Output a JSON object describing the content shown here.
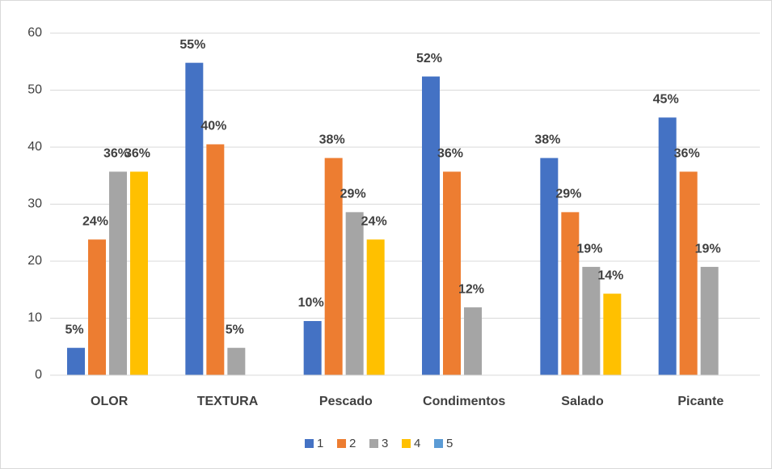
{
  "chart_data": {
    "type": "bar",
    "categories": [
      "OLOR",
      "TEXTURA",
      "Pescado",
      "Condimentos",
      "Salado",
      "Picante"
    ],
    "series": [
      {
        "name": "1",
        "color": "#4472c4",
        "values": [
          4.8,
          54.8,
          9.5,
          52.4,
          38.1,
          45.2
        ],
        "value_labels": [
          "5%",
          "55%",
          "10%",
          "52%",
          "38%",
          "45%"
        ]
      },
      {
        "name": "2",
        "color": "#ed7d31",
        "values": [
          23.8,
          40.5,
          38.1,
          35.7,
          28.6,
          35.7
        ],
        "value_labels": [
          "24%",
          "40%",
          "38%",
          "36%",
          "29%",
          "36%"
        ]
      },
      {
        "name": "3",
        "color": "#a5a5a5",
        "values": [
          35.7,
          4.8,
          28.6,
          11.9,
          19,
          19
        ],
        "value_labels": [
          "36%",
          "5%",
          "29%",
          "12%",
          "19%",
          "19%"
        ]
      },
      {
        "name": "4",
        "color": "#ffc000",
        "values": [
          35.7,
          null,
          23.8,
          null,
          14.3,
          null
        ],
        "value_labels": [
          "36%",
          null,
          "24%",
          null,
          "14%",
          null
        ]
      },
      {
        "name": "5",
        "color": "#5b9bd5",
        "values": [
          null,
          null,
          null,
          null,
          null,
          null
        ]
      }
    ],
    "ylim": [
      0,
      60
    ],
    "yticks": [
      0,
      10,
      20,
      30,
      40,
      50,
      60
    ],
    "grid": true,
    "legend": "bottom"
  }
}
